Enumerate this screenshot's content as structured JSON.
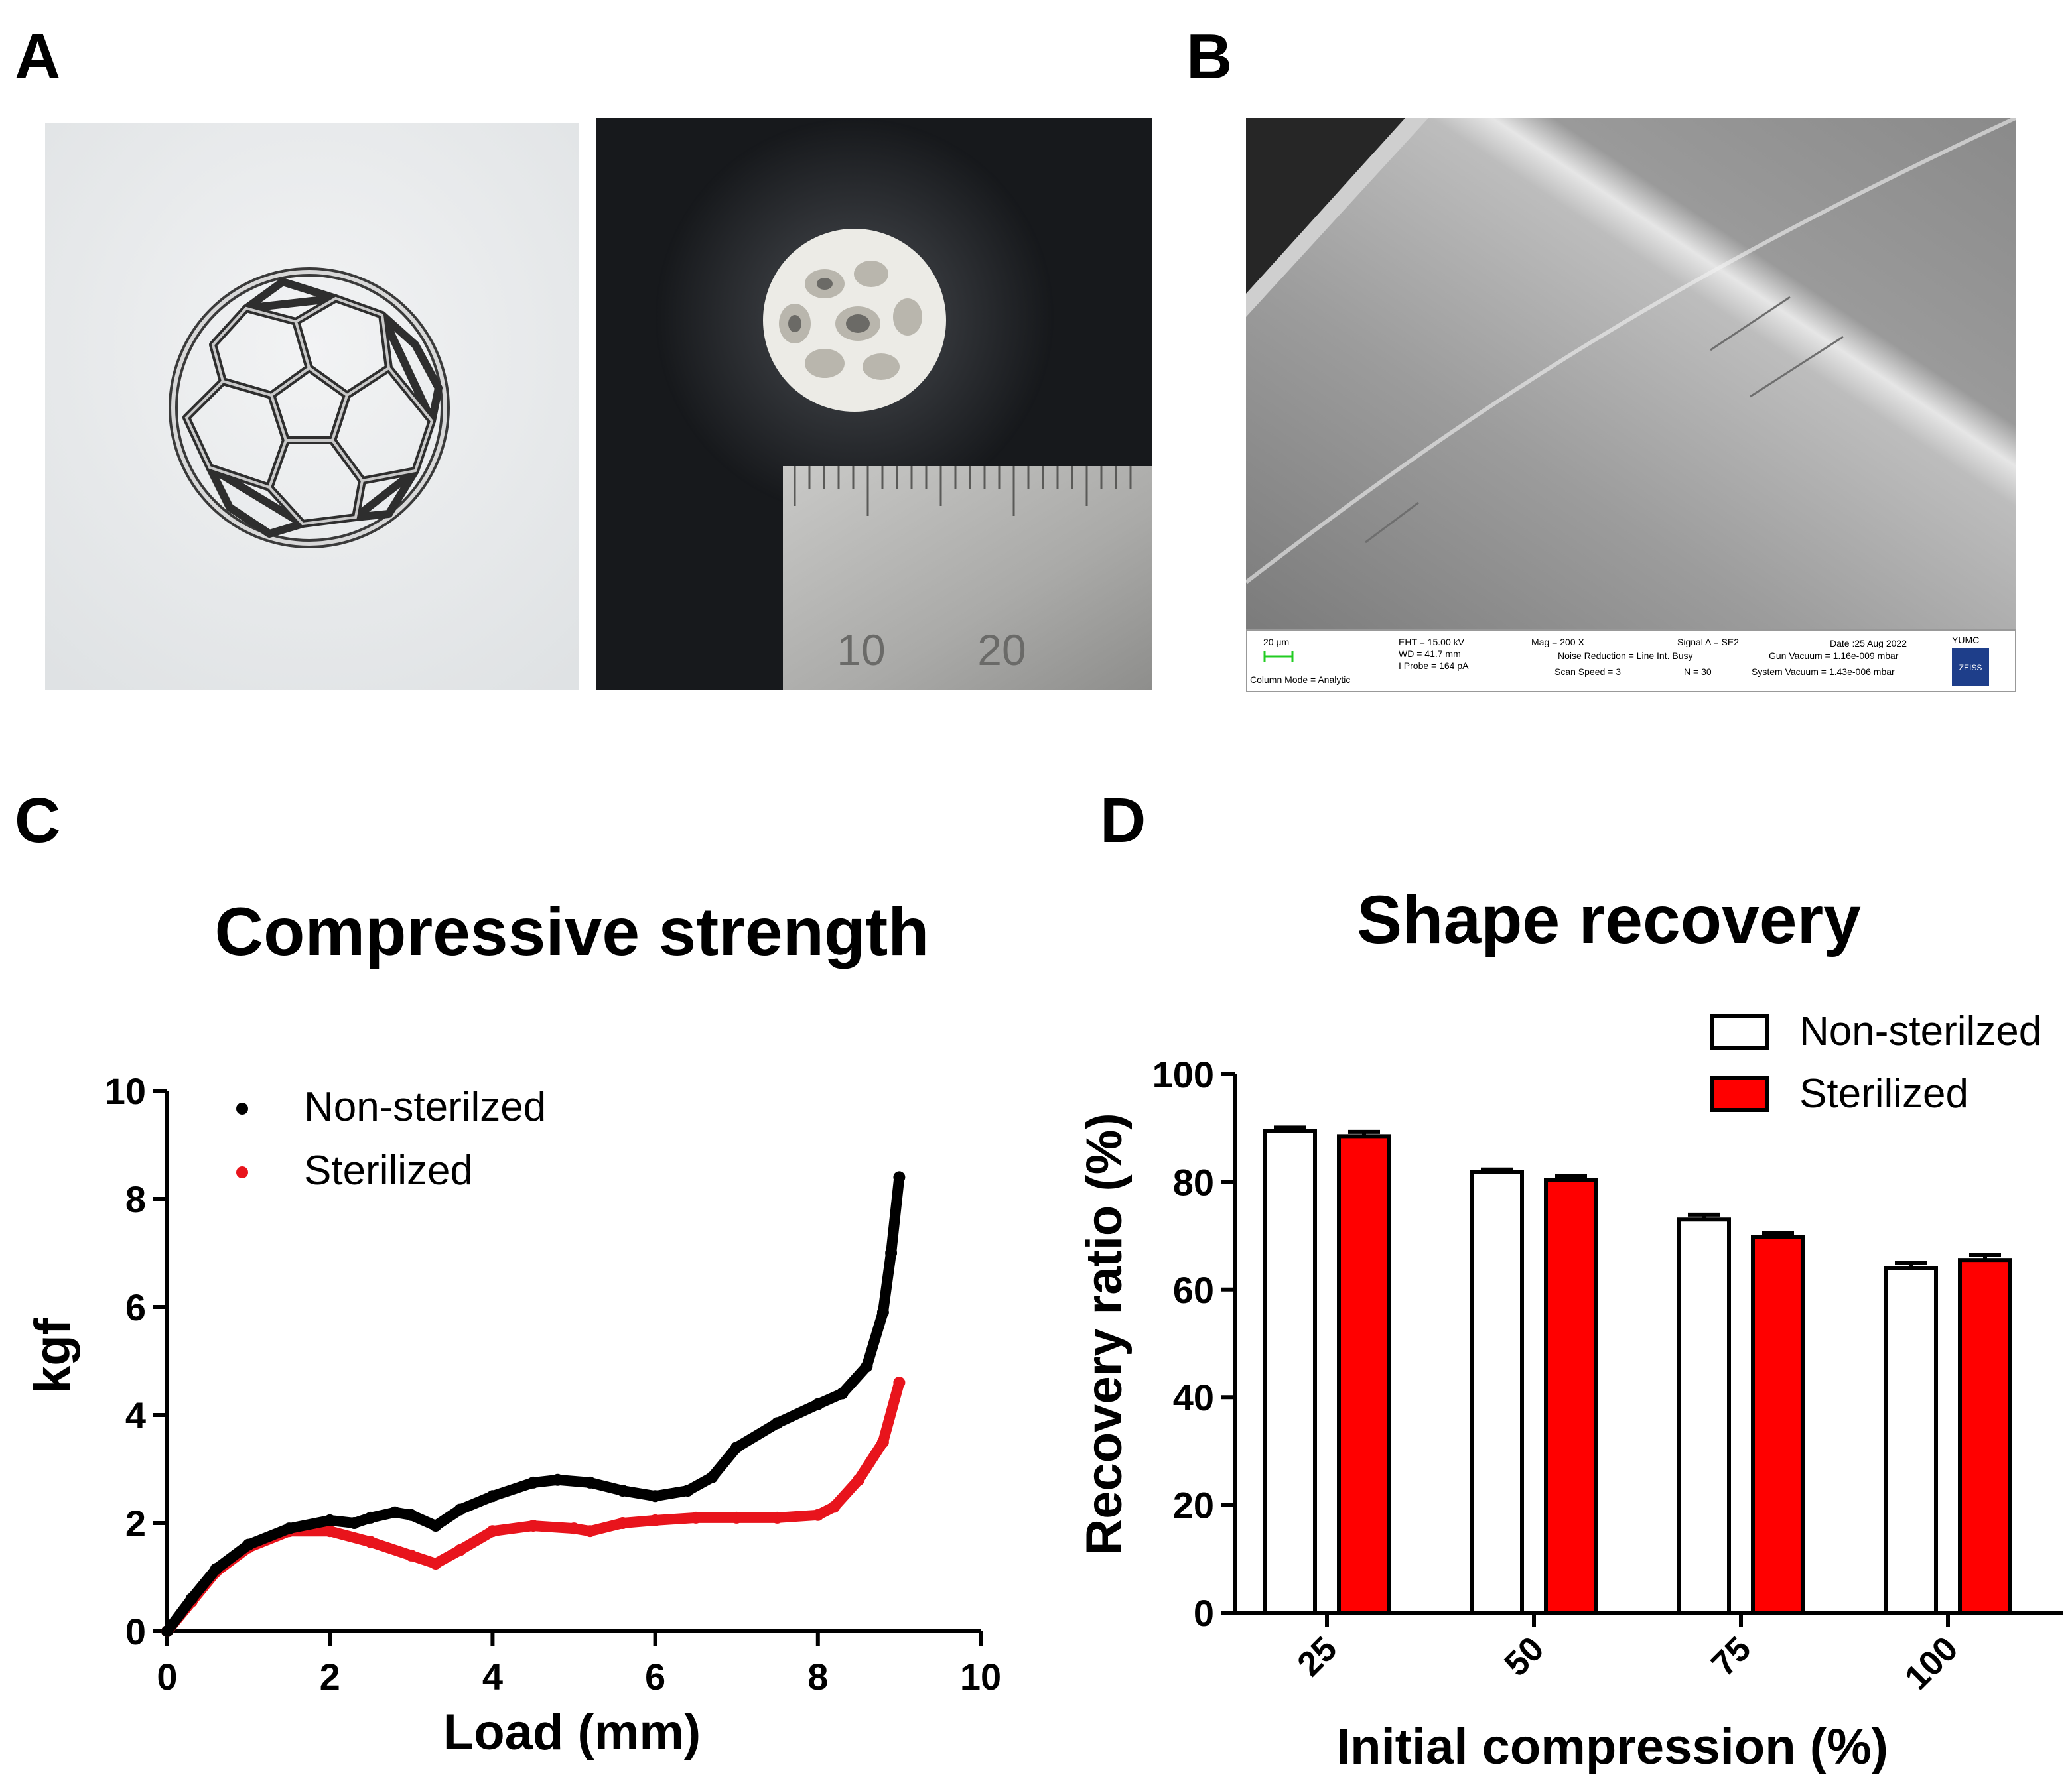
{
  "panels": {
    "a": {
      "letter": "A"
    },
    "b": {
      "letter": "B"
    },
    "c": {
      "letter": "C"
    },
    "d": {
      "letter": "D"
    }
  },
  "photo_a_render": {
    "icon": "fullerene-render-icon",
    "background": "#e9ecee"
  },
  "photo_a_print": {
    "icon": "printed-sphere-photo-icon",
    "ruler_labels": [
      "10",
      "20"
    ]
  },
  "sem": {
    "icon": "sem-micrograph-icon",
    "scale_bar_label": "20 µm",
    "column_mode": "Column Mode = Analytic",
    "eht": "EHT = 15.00 kV",
    "wd": "WD = 41.7 mm",
    "iprobe": "I Probe =    164 pA",
    "mag": "Mag =    200 X",
    "noise_reduction": "Noise Reduction = Line Int. Busy",
    "scan_speed": "Scan Speed = 3",
    "n": "N = 30",
    "signal": "Signal A = SE2",
    "date": "Date :25 Aug 2022",
    "gun_vacuum": "Gun Vacuum = 1.16e-009 mbar",
    "system_vacuum": "System Vacuum = 1.43e-006 mbar",
    "institution": "YUMC",
    "logo_text": "ZEISS"
  },
  "colors": {
    "non_sterilized": "#000000",
    "sterilized": "#e8141c",
    "bar_sterilized": "#ff0000"
  },
  "chart_data": [
    {
      "type": "scatter",
      "title": "Compressive strength",
      "xlabel": "Load (mm)",
      "ylabel": "kgf",
      "xlim": [
        0,
        10
      ],
      "ylim": [
        0,
        10
      ],
      "xticks": [
        "0",
        "2",
        "4",
        "6",
        "8",
        "10"
      ],
      "yticks": [
        "0",
        "2",
        "4",
        "6",
        "8",
        "10"
      ],
      "legend_position": "top-left",
      "series": [
        {
          "name": "Non-sterilzed",
          "points": [
            [
              0,
              0
            ],
            [
              0.3,
              0.6
            ],
            [
              0.6,
              1.15
            ],
            [
              1.0,
              1.6
            ],
            [
              1.5,
              1.9
            ],
            [
              2.0,
              2.05
            ],
            [
              2.3,
              2.0
            ],
            [
              2.5,
              2.1
            ],
            [
              2.8,
              2.2
            ],
            [
              3.0,
              2.15
            ],
            [
              3.3,
              1.95
            ],
            [
              3.6,
              2.25
            ],
            [
              4.0,
              2.5
            ],
            [
              4.5,
              2.75
            ],
            [
              4.8,
              2.8
            ],
            [
              5.2,
              2.75
            ],
            [
              5.6,
              2.6
            ],
            [
              6.0,
              2.5
            ],
            [
              6.4,
              2.6
            ],
            [
              6.7,
              2.85
            ],
            [
              7.0,
              3.4
            ],
            [
              7.5,
              3.85
            ],
            [
              8.0,
              4.2
            ],
            [
              8.3,
              4.4
            ],
            [
              8.6,
              4.9
            ],
            [
              8.8,
              5.9
            ],
            [
              8.9,
              7.0
            ],
            [
              9.0,
              8.4
            ]
          ]
        },
        {
          "name": "Sterilized",
          "points": [
            [
              0,
              0
            ],
            [
              0.3,
              0.55
            ],
            [
              0.6,
              1.1
            ],
            [
              1.0,
              1.55
            ],
            [
              1.5,
              1.85
            ],
            [
              2.0,
              1.85
            ],
            [
              2.5,
              1.65
            ],
            [
              3.0,
              1.4
            ],
            [
              3.3,
              1.25
            ],
            [
              3.6,
              1.5
            ],
            [
              4.0,
              1.85
            ],
            [
              4.5,
              1.95
            ],
            [
              5.0,
              1.9
            ],
            [
              5.2,
              1.85
            ],
            [
              5.6,
              2.0
            ],
            [
              6.0,
              2.05
            ],
            [
              6.5,
              2.1
            ],
            [
              7.0,
              2.1
            ],
            [
              7.5,
              2.1
            ],
            [
              8.0,
              2.15
            ],
            [
              8.2,
              2.3
            ],
            [
              8.5,
              2.8
            ],
            [
              8.8,
              3.5
            ],
            [
              9.0,
              4.6
            ]
          ]
        }
      ]
    },
    {
      "type": "bar",
      "title": "Shape recovery",
      "xlabel": "Initial compression (%)",
      "ylabel": "Recovery ratio (%)",
      "ylim": [
        0,
        100
      ],
      "yticks": [
        "0",
        "20",
        "40",
        "60",
        "80",
        "100"
      ],
      "categories": [
        "25",
        "50",
        "75",
        "100"
      ],
      "legend_position": "top-right",
      "series": [
        {
          "name": "Non-sterilzed",
          "values": [
            89.5,
            81.8,
            73.0,
            64.0
          ],
          "errors": [
            0.6,
            0.5,
            0.9,
            1.0
          ]
        },
        {
          "name": "Sterilized",
          "values": [
            88.5,
            80.3,
            69.8,
            65.5
          ],
          "errors": [
            0.8,
            0.8,
            0.7,
            1.0
          ]
        }
      ]
    }
  ]
}
